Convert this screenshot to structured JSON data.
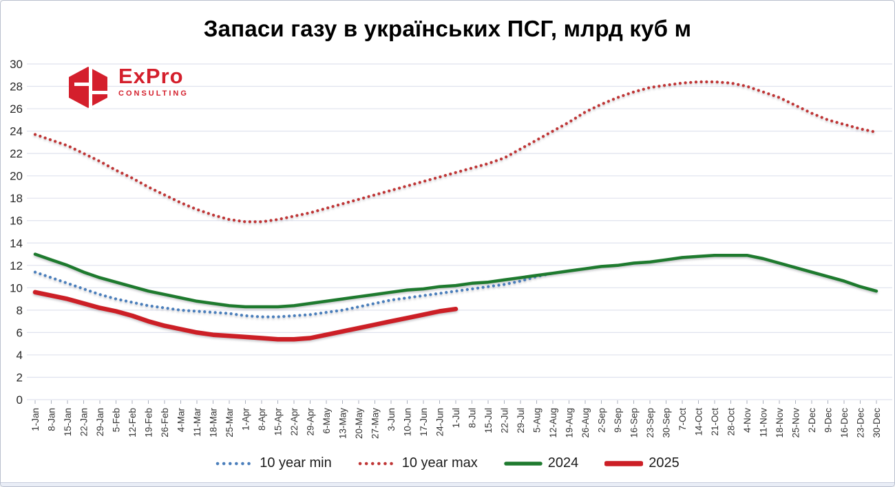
{
  "page": {
    "background": "#ffffff",
    "border_color": "#b9bfcd",
    "footer_strip_color": "#e9edf6"
  },
  "logo": {
    "brand": "ExPro",
    "subtitle": "CONSULTING",
    "color": "#d41f2c"
  },
  "chart_data": {
    "type": "line",
    "title": "Запаси газу в українських ПСГ, млрд куб м",
    "xlabel": "",
    "ylabel": "",
    "ylim": [
      0,
      30
    ],
    "ytick_step": 2,
    "grid": true,
    "legend_position": "bottom",
    "gridline_color": "#dfe2ee",
    "categories": [
      "1-Jan",
      "8-Jan",
      "15-Jan",
      "22-Jan",
      "29-Jan",
      "5-Feb",
      "12-Feb",
      "19-Feb",
      "26-Feb",
      "4-Mar",
      "11-Mar",
      "18-Mar",
      "25-Mar",
      "1-Apr",
      "8-Apr",
      "15-Apr",
      "22-Apr",
      "29-Apr",
      "6-May",
      "13-May",
      "20-May",
      "27-May",
      "3-Jun",
      "10-Jun",
      "17-Jun",
      "24-Jun",
      "1-Jul",
      "8-Jul",
      "15-Jul",
      "22-Jul",
      "29-Jul",
      "5-Aug",
      "12-Aug",
      "19-Aug",
      "26-Aug",
      "2-Sep",
      "9-Sep",
      "16-Sep",
      "23-Sep",
      "30-Sep",
      "7-Oct",
      "14-Oct",
      "21-Oct",
      "28-Oct",
      "4-Nov",
      "11-Nov",
      "18-Nov",
      "25-Nov",
      "2-Dec",
      "9-Dec",
      "16-Dec",
      "23-Dec",
      "30-Dec"
    ],
    "series": [
      {
        "name": "10 year min",
        "style": "dotted",
        "color": "#4a7ebb",
        "width": 4.2,
        "values": [
          11.4,
          10.9,
          10.4,
          9.9,
          9.4,
          9.0,
          8.7,
          8.4,
          8.2,
          8.0,
          7.9,
          7.8,
          7.7,
          7.5,
          7.4,
          7.4,
          7.5,
          7.6,
          7.8,
          8.0,
          8.3,
          8.6,
          8.9,
          9.1,
          9.3,
          9.5,
          9.7,
          9.9,
          10.1,
          10.3,
          10.6,
          11.0,
          11.3,
          11.5,
          11.7,
          11.9,
          12.0,
          12.2,
          12.3,
          12.5,
          12.7,
          12.8,
          12.9,
          12.9,
          12.9,
          12.6,
          12.2,
          11.8,
          11.4,
          11.0,
          10.6,
          10.1,
          9.7
        ]
      },
      {
        "name": "10 year max",
        "style": "dotted",
        "color": "#bf3535",
        "width": 4.2,
        "values": [
          23.7,
          23.2,
          22.7,
          22.0,
          21.3,
          20.5,
          19.8,
          19.0,
          18.3,
          17.6,
          17.0,
          16.5,
          16.1,
          15.9,
          15.9,
          16.1,
          16.4,
          16.7,
          17.1,
          17.5,
          17.9,
          18.3,
          18.7,
          19.1,
          19.5,
          19.9,
          20.3,
          20.7,
          21.1,
          21.6,
          22.4,
          23.2,
          24.0,
          24.8,
          25.7,
          26.4,
          27.0,
          27.5,
          27.9,
          28.1,
          28.3,
          28.4,
          28.4,
          28.3,
          28.0,
          27.5,
          27.0,
          26.3,
          25.6,
          25.0,
          24.6,
          24.2,
          23.9
        ]
      },
      {
        "name": "2024",
        "style": "solid",
        "color": "#1e7a2e",
        "width": 4.5,
        "values": [
          13.0,
          12.5,
          12.0,
          11.4,
          10.9,
          10.5,
          10.1,
          9.7,
          9.4,
          9.1,
          8.8,
          8.6,
          8.4,
          8.3,
          8.3,
          8.3,
          8.4,
          8.6,
          8.8,
          9.0,
          9.2,
          9.4,
          9.6,
          9.8,
          9.9,
          10.1,
          10.2,
          10.4,
          10.5,
          10.7,
          10.9,
          11.1,
          11.3,
          11.5,
          11.7,
          11.9,
          12.0,
          12.2,
          12.3,
          12.5,
          12.7,
          12.8,
          12.9,
          12.9,
          12.9,
          12.6,
          12.2,
          11.8,
          11.4,
          11.0,
          10.6,
          10.1,
          9.7
        ]
      },
      {
        "name": "2025",
        "style": "solid",
        "color": "#cc1f26",
        "width": 6.5,
        "values": [
          9.6,
          9.3,
          9.0,
          8.6,
          8.2,
          7.9,
          7.5,
          7.0,
          6.6,
          6.3,
          6.0,
          5.8,
          5.7,
          5.6,
          5.5,
          5.4,
          5.4,
          5.5,
          5.8,
          6.1,
          6.4,
          6.7,
          7.0,
          7.3,
          7.6,
          7.9,
          8.1
        ]
      }
    ]
  }
}
